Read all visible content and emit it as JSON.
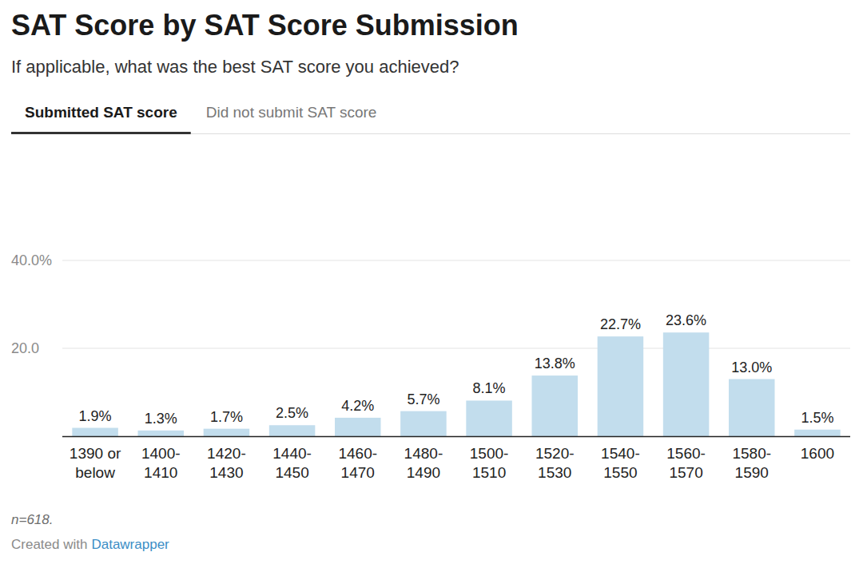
{
  "chart_data": {
    "type": "bar",
    "title": "SAT Score by SAT Score Submission",
    "subtitle": "If applicable, what was the best SAT score you achieved?",
    "tabs": [
      "Submitted SAT score",
      "Did not submit SAT score"
    ],
    "categories": [
      "1390 or below",
      "1400-1410",
      "1420-1430",
      "1440-1450",
      "1460-1470",
      "1480-1490",
      "1500-1510",
      "1520-1530",
      "1540-1550",
      "1560-1570",
      "1580-1590",
      "1600"
    ],
    "values": [
      1.9,
      1.3,
      1.7,
      2.5,
      4.2,
      5.7,
      8.1,
      13.8,
      22.7,
      23.6,
      13.0,
      1.5
    ],
    "value_labels": [
      "1.9%",
      "1.3%",
      "1.7%",
      "2.5%",
      "4.2%",
      "5.7%",
      "8.1%",
      "13.8%",
      "22.7%",
      "23.6%",
      "13.0%",
      "1.5%"
    ],
    "color": "#c2dded",
    "ylim": [
      0,
      40
    ],
    "yticks": [
      {
        "value": 20,
        "label": "20.0"
      },
      {
        "value": 40,
        "label": "40.0%"
      }
    ],
    "grid": true,
    "data_labels": true,
    "note": "n=618.",
    "credit": [
      "Created with",
      "Datawrapper"
    ]
  }
}
